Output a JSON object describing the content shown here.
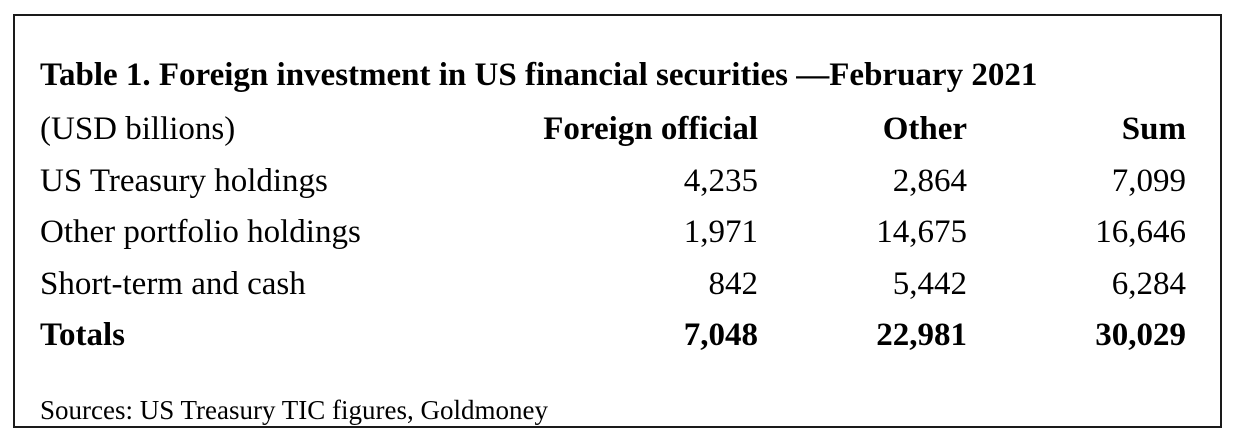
{
  "title": "Table 1. Foreign investment in US financial securities —February 2021",
  "table": {
    "header": {
      "label": "(USD billions)",
      "columns": [
        "Foreign official",
        "Other",
        "Sum"
      ]
    },
    "rows": [
      {
        "label": "US Treasury holdings",
        "values": [
          "4,235",
          "2,864",
          "7,099"
        ]
      },
      {
        "label": "Other portfolio holdings",
        "values": [
          "1,971",
          "14,675",
          "16,646"
        ]
      },
      {
        "label": "Short-term and cash",
        "values": [
          "842",
          "5,442",
          "6,284"
        ]
      }
    ],
    "totals": {
      "label": "Totals",
      "values": [
        "7,048",
        "22,981",
        "30,029"
      ]
    }
  },
  "source": "Sources: US Treasury TIC figures, Goldmoney"
}
